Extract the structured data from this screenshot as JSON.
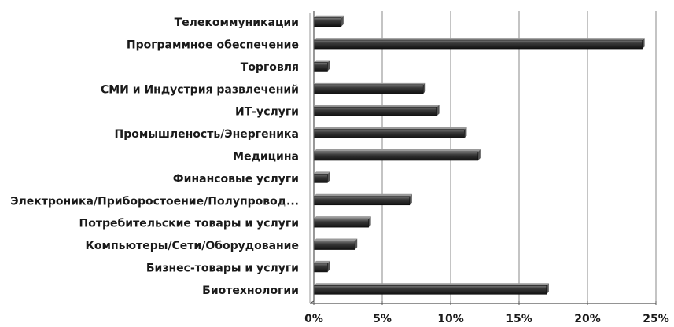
{
  "chart_data": {
    "type": "bar",
    "orientation": "horizontal",
    "categories": [
      "Телекоммуникации",
      "Программное обеспечение",
      "Торговля",
      "СМИ и Индустрия развлечений",
      "ИТ-услуги",
      "Промышленость/Энергеника",
      "Медицина",
      "Финансовые услуги",
      "Электроника/Приборостоение/Полупровод...",
      "Потребительские товары и услуги",
      "Компьютеры/Сети/Оборудование",
      "Бизнес-товары и услуги",
      "Биотехнологии"
    ],
    "values": [
      2,
      24,
      1,
      8,
      9,
      11,
      12,
      1,
      7,
      4,
      3,
      1,
      17
    ],
    "xlim": [
      0,
      25
    ],
    "x_ticks": [
      0,
      5,
      10,
      15,
      20,
      25
    ],
    "x_tick_labels": [
      "0%",
      "5%",
      "10%",
      "15%",
      "20%",
      "25%"
    ],
    "grid": "vertical",
    "bar_color": "#2b2b2b",
    "title": "",
    "xlabel": "",
    "ylabel": ""
  }
}
